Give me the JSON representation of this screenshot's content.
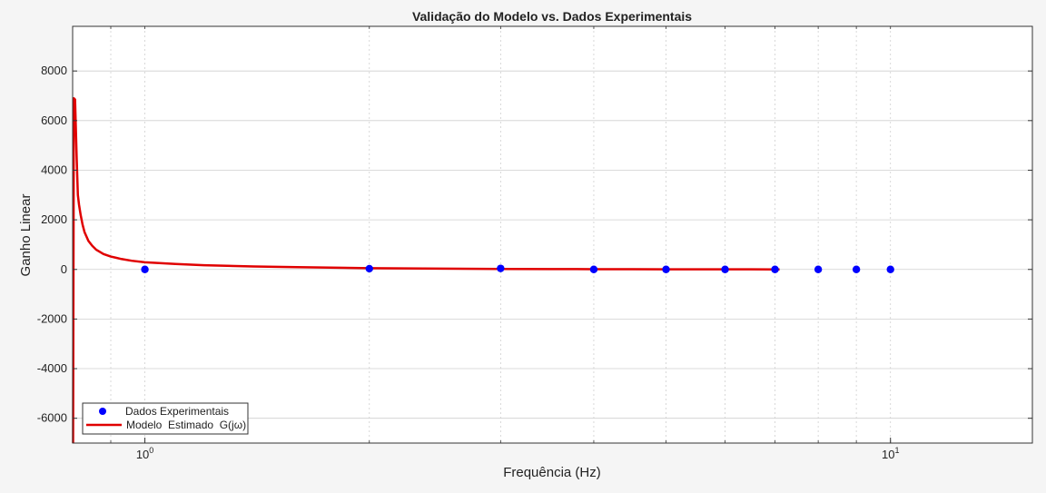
{
  "chart_data": {
    "type": "line",
    "title": "Validação do Modelo vs. Dados Experimentais",
    "xlabel": "Frequência (Hz)",
    "ylabel": "Ganho Linear",
    "x_scale": "log",
    "xlim": [
      0.8,
      15.5
    ],
    "ylim": [
      -7000,
      9800
    ],
    "x_ticks": [
      {
        "value": 1,
        "base": "10",
        "exp": "0"
      },
      {
        "value": 10,
        "base": "10",
        "exp": "1"
      }
    ],
    "x_minor_ticks": [
      0.9,
      2,
      3,
      4,
      5,
      6,
      7,
      8,
      9
    ],
    "y_ticks": [
      {
        "value": -6000,
        "label": "-6000"
      },
      {
        "value": -4000,
        "label": "-4000"
      },
      {
        "value": -2000,
        "label": "-2000"
      },
      {
        "value": 0,
        "label": "0"
      },
      {
        "value": 2000,
        "label": "2000"
      },
      {
        "value": 4000,
        "label": "4000"
      },
      {
        "value": 6000,
        "label": "6000"
      },
      {
        "value": 8000,
        "label": "8000"
      }
    ],
    "grid": true,
    "legend_position": "bottom-left",
    "series": [
      {
        "name": "Dados Experimentais",
        "kind": "scatter",
        "color": "#0000ff",
        "x": [
          1,
          2,
          3,
          4,
          5,
          6,
          7,
          8,
          9,
          10
        ],
        "y": [
          0,
          30,
          40,
          0,
          0,
          0,
          0,
          0,
          0,
          0
        ]
      },
      {
        "name": "Modelo  Estimado  G(jω)",
        "kind": "line",
        "color": "#e00000",
        "x": [
          0.8,
          0.803,
          0.806,
          0.81,
          0.813,
          0.816,
          0.82,
          0.825,
          0.83,
          0.84,
          0.85,
          0.86,
          0.88,
          0.9,
          0.93,
          0.96,
          1.0,
          1.1,
          1.2,
          1.4,
          1.6,
          2.0,
          2.5,
          3.0,
          3.5,
          4.0,
          4.5,
          5.0,
          5.5,
          6.0,
          6.5,
          7.0,
          7.1
        ],
        "y": [
          -7000,
          6900,
          6850,
          4500,
          3000,
          2600,
          2200,
          1800,
          1500,
          1150,
          950,
          800,
          620,
          520,
          420,
          350,
          290,
          220,
          170,
          120,
          90,
          50,
          30,
          20,
          15,
          10,
          8,
          6,
          5,
          4,
          3,
          2,
          2
        ]
      }
    ]
  }
}
